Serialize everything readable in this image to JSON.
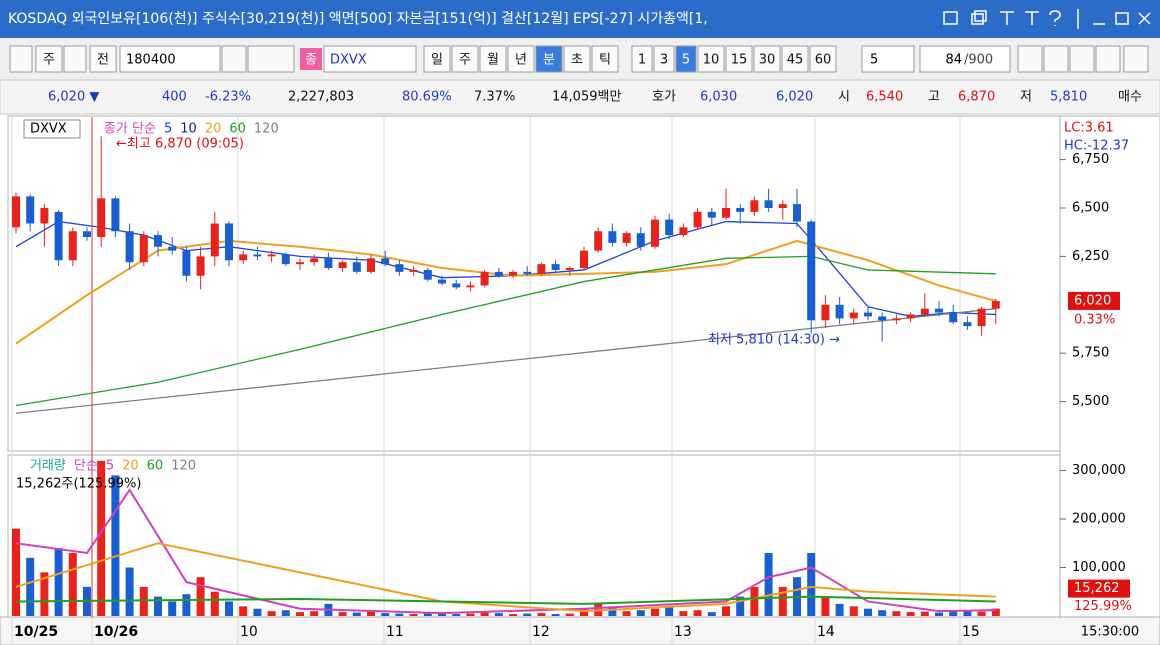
{
  "title_bar": {
    "text": "KOSDAQ 외국인보유[106(천)] 주식수[30,219(천)] 액면[500] 자본금[151(억)] 결산[12월] EPS[-27] 시가총액[1,"
  },
  "toolbar": {
    "period": "주",
    "prev": "전",
    "code": "180400",
    "market": "종",
    "name": "DXVX",
    "units": [
      "일",
      "주",
      "월",
      "년",
      "분",
      "초",
      "틱"
    ],
    "selected_unit": 4,
    "minutes": [
      "1",
      "3",
      "5",
      "10",
      "15",
      "30",
      "45",
      "60"
    ],
    "selected_minute": 2,
    "count_select": "5",
    "count": "84",
    "max": "/900"
  },
  "quote": [
    {
      "text": "6,020 ▼",
      "color": "#1a3cc8"
    },
    {
      "text": "400",
      "color": "#1a3cc8"
    },
    {
      "text": "-6.23%",
      "color": "#1a3cc8"
    },
    {
      "text": "2,227,803",
      "color": "#111111"
    },
    {
      "text": "80.69%",
      "color": "#1a3cc8"
    },
    {
      "text": "7.37%",
      "color": "#111111"
    },
    {
      "text": "14,059백만",
      "color": "#111111"
    },
    {
      "text": "호가",
      "color": "#111111"
    },
    {
      "text": "6,030",
      "color": "#1a3cc8"
    },
    {
      "text": "6,020",
      "color": "#1a3cc8"
    },
    {
      "text": "시",
      "color": "#111111"
    },
    {
      "text": "6,540",
      "color": "#e01010"
    },
    {
      "text": "고",
      "color": "#111111"
    },
    {
      "text": "6,870",
      "color": "#e01010"
    },
    {
      "text": "저",
      "color": "#111111"
    },
    {
      "text": "5,810",
      "color": "#1a3cc8"
    },
    {
      "text": "매수",
      "color": "#111111"
    }
  ],
  "chart": {
    "type": "candlestick",
    "symbol": "DXVX",
    "price_legend": [
      {
        "text": "종가 단순",
        "color": "#d040c0"
      },
      {
        "text": "5",
        "color": "#2040e0"
      },
      {
        "text": "10",
        "color": "#102080"
      },
      {
        "text": "20",
        "color": "#f0a020"
      },
      {
        "text": "60",
        "color": "#20a020"
      },
      {
        "text": "120",
        "color": "#808080"
      }
    ],
    "volume_legend": [
      {
        "text": "거래량",
        "color": "#20a0a0"
      },
      {
        "text": "단순",
        "color": "#d040c0"
      },
      {
        "text": "5",
        "color": "#d040c0"
      },
      {
        "text": "20",
        "color": "#f0a020"
      },
      {
        "text": "60",
        "color": "#20a020"
      },
      {
        "text": "120",
        "color": "#808080"
      }
    ],
    "volume_info": "15,262주(125.99%)",
    "high_note": "←최고 6,870 (09:05)",
    "low_note": "최저 5,810 (14:30) →",
    "lc": "LC:3.61",
    "hc": "HC:-12.37",
    "last_price": {
      "value": 6020,
      "label": "6,020"
    },
    "last_change": "0.33%",
    "last_volume": {
      "value": 15262,
      "label": "15,262"
    },
    "last_volume_ratio": "125.99%",
    "colors": {
      "up": "#e8231b",
      "down": "#1a5fd0"
    },
    "ylim": [
      5250,
      6970
    ],
    "yticks": [
      {
        "value": 6750,
        "label": "6,750"
      },
      {
        "value": 6500,
        "label": "6,500"
      },
      {
        "value": 6250,
        "label": "6,250"
      },
      {
        "value": 5750,
        "label": "5,750"
      },
      {
        "value": 5500,
        "label": "5,500"
      }
    ],
    "vlim": [
      0,
      330000
    ],
    "vticks": [
      {
        "value": 300000,
        "label": "300,000"
      },
      {
        "value": 200000,
        "label": "200,000"
      },
      {
        "value": 100000,
        "label": "100,000"
      }
    ],
    "x_labels": [
      "10/25",
      "10/26",
      "10",
      "11",
      "12",
      "13",
      "14",
      "15"
    ],
    "time_label": "15:30:00",
    "candles": [
      [
        6400,
        6580,
        6370,
        6560
      ],
      [
        6560,
        6570,
        6380,
        6420
      ],
      [
        6420,
        6520,
        6300,
        6500
      ],
      [
        6480,
        6490,
        6200,
        6230
      ],
      [
        6230,
        6400,
        6200,
        6380
      ],
      [
        6380,
        6400,
        6330,
        6350
      ],
      [
        6350,
        6870,
        6300,
        6550
      ],
      [
        6550,
        6560,
        6350,
        6380
      ],
      [
        6380,
        6420,
        6180,
        6220
      ],
      [
        6220,
        6380,
        6200,
        6360
      ],
      [
        6360,
        6380,
        6250,
        6300
      ],
      [
        6300,
        6350,
        6260,
        6280
      ],
      [
        6280,
        6300,
        6120,
        6150
      ],
      [
        6150,
        6300,
        6080,
        6250
      ],
      [
        6250,
        6480,
        6200,
        6420
      ],
      [
        6420,
        6430,
        6200,
        6230
      ],
      [
        6230,
        6280,
        6210,
        6260
      ],
      [
        6260,
        6300,
        6230,
        6250
      ],
      [
        6250,
        6280,
        6220,
        6260
      ],
      [
        6260,
        6270,
        6200,
        6210
      ],
      [
        6210,
        6240,
        6180,
        6220
      ],
      [
        6220,
        6260,
        6200,
        6240
      ],
      [
        6240,
        6270,
        6180,
        6190
      ],
      [
        6190,
        6230,
        6170,
        6220
      ],
      [
        6220,
        6250,
        6160,
        6170
      ],
      [
        6170,
        6260,
        6160,
        6240
      ],
      [
        6240,
        6280,
        6200,
        6210
      ],
      [
        6210,
        6230,
        6150,
        6170
      ],
      [
        6170,
        6200,
        6150,
        6180
      ],
      [
        6180,
        6190,
        6120,
        6130
      ],
      [
        6130,
        6150,
        6100,
        6110
      ],
      [
        6110,
        6130,
        6080,
        6090
      ],
      [
        6090,
        6120,
        6070,
        6100
      ],
      [
        6100,
        6180,
        6090,
        6170
      ],
      [
        6170,
        6190,
        6140,
        6150
      ],
      [
        6150,
        6180,
        6140,
        6170
      ],
      [
        6170,
        6200,
        6150,
        6160
      ],
      [
        6160,
        6220,
        6150,
        6210
      ],
      [
        6210,
        6230,
        6170,
        6180
      ],
      [
        6180,
        6200,
        6150,
        6190
      ],
      [
        6190,
        6300,
        6180,
        6280
      ],
      [
        6280,
        6400,
        6270,
        6380
      ],
      [
        6380,
        6420,
        6300,
        6320
      ],
      [
        6320,
        6380,
        6300,
        6370
      ],
      [
        6370,
        6400,
        6280,
        6300
      ],
      [
        6300,
        6460,
        6290,
        6440
      ],
      [
        6440,
        6470,
        6340,
        6360
      ],
      [
        6360,
        6420,
        6350,
        6400
      ],
      [
        6400,
        6500,
        6390,
        6480
      ],
      [
        6480,
        6500,
        6410,
        6450
      ],
      [
        6450,
        6600,
        6440,
        6500
      ],
      [
        6500,
        6520,
        6420,
        6480
      ],
      [
        6480,
        6560,
        6460,
        6540
      ],
      [
        6540,
        6600,
        6480,
        6500
      ],
      [
        6500,
        6540,
        6440,
        6520
      ],
      [
        6520,
        6600,
        6400,
        6430
      ],
      [
        6430,
        6440,
        5850,
        5920
      ],
      [
        5920,
        6050,
        5880,
        6000
      ],
      [
        6000,
        6040,
        5900,
        5930
      ],
      [
        5930,
        5980,
        5900,
        5960
      ],
      [
        5960,
        5990,
        5920,
        5940
      ],
      [
        5940,
        5960,
        5810,
        5920
      ],
      [
        5920,
        5950,
        5900,
        5930
      ],
      [
        5930,
        5960,
        5910,
        5950
      ],
      [
        5950,
        6060,
        5940,
        5980
      ],
      [
        5980,
        6020,
        5940,
        5960
      ],
      [
        5960,
        6000,
        5900,
        5910
      ],
      [
        5910,
        5940,
        5870,
        5890
      ],
      [
        5890,
        5990,
        5840,
        5980
      ],
      [
        5980,
        6030,
        5900,
        6020
      ]
    ],
    "volumes": [
      180000,
      120000,
      90000,
      140000,
      130000,
      60000,
      320000,
      290000,
      100000,
      60000,
      40000,
      30000,
      45000,
      80000,
      50000,
      30000,
      20000,
      15000,
      10000,
      12000,
      8000,
      10000,
      25000,
      8000,
      7000,
      9000,
      6000,
      5000,
      4000,
      6000,
      5000,
      4000,
      5000,
      8000,
      6000,
      4000,
      5000,
      6000,
      4000,
      5000,
      15000,
      25000,
      20000,
      10000,
      12000,
      15000,
      20000,
      10000,
      12000,
      8000,
      20000,
      40000,
      60000,
      130000,
      60000,
      80000,
      130000,
      40000,
      25000,
      20000,
      15000,
      12000,
      10000,
      8000,
      9000,
      7000,
      12000,
      10000,
      9000,
      15262
    ],
    "ma": [
      {
        "color": "#2040e0",
        "x": [
          0,
          3,
          6,
          9,
          12,
          15,
          20,
          25,
          30,
          35,
          40,
          45,
          50,
          55,
          57,
          60,
          63,
          66,
          69
        ],
        "values": [
          6300,
          6430,
          6400,
          6360,
          6280,
          6300,
          6250,
          6230,
          6140,
          6150,
          6180,
          6330,
          6430,
          6420,
          6250,
          5990,
          5940,
          5960,
          5950
        ]
      },
      {
        "color": "#f0a020",
        "x": [
          0,
          5,
          10,
          15,
          20,
          25,
          30,
          35,
          40,
          45,
          50,
          55,
          60,
          65,
          69
        ],
        "values": [
          5800,
          6050,
          6280,
          6330,
          6300,
          6260,
          6190,
          6150,
          6160,
          6170,
          6210,
          6330,
          6230,
          6100,
          6020
        ]
      },
      {
        "color": "#20a020",
        "x": [
          0,
          10,
          20,
          30,
          40,
          50,
          56,
          60,
          69
        ],
        "values": [
          5480,
          5600,
          5770,
          5950,
          6120,
          6240,
          6250,
          6180,
          6160
        ]
      },
      {
        "color": "#808080",
        "x": [
          0,
          69
        ],
        "values": [
          5440,
          5980
        ]
      }
    ],
    "vma": [
      {
        "color": "#d040c0",
        "x": [
          0,
          5,
          8,
          12,
          20,
          30,
          40,
          50,
          53,
          56,
          60,
          65,
          69
        ],
        "values": [
          150000,
          130000,
          260000,
          70000,
          15000,
          6000,
          15000,
          30000,
          80000,
          100000,
          30000,
          10000,
          12000
        ]
      },
      {
        "color": "#f0a020",
        "x": [
          0,
          10,
          20,
          30,
          40,
          50,
          56,
          60,
          69
        ],
        "values": [
          60000,
          150000,
          90000,
          30000,
          10000,
          25000,
          60000,
          50000,
          40000
        ]
      },
      {
        "color": "#20a020",
        "x": [
          0,
          20,
          40,
          56,
          69
        ],
        "values": [
          30000,
          35000,
          25000,
          40000,
          30000
        ]
      }
    ]
  }
}
